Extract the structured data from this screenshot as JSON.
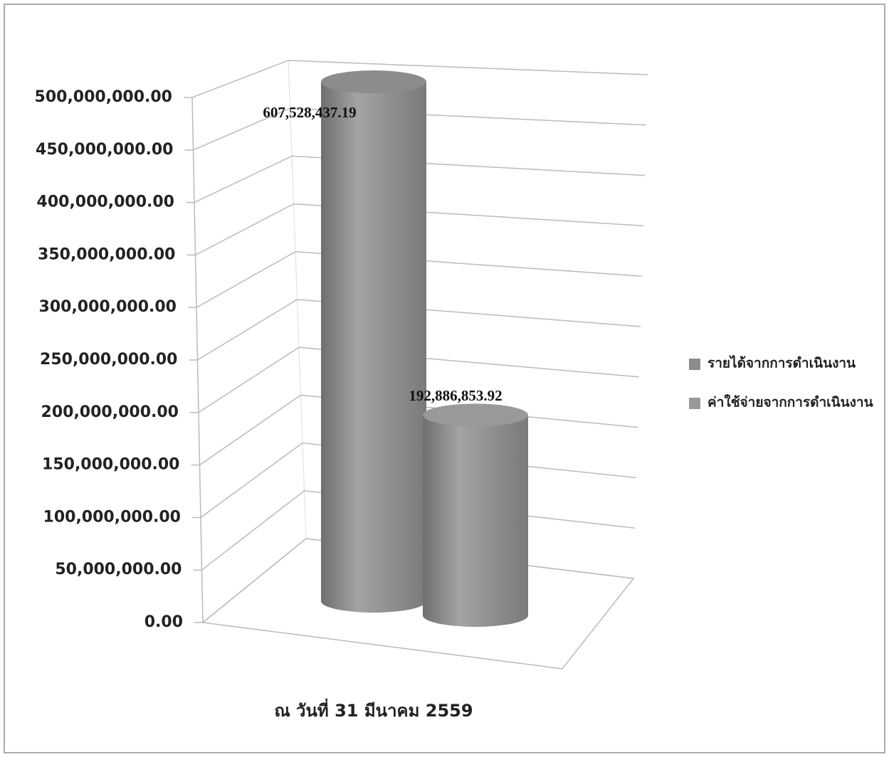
{
  "chart_data": {
    "type": "bar3d",
    "categories": [
      "ณ วันที่ 31 มีนาคม 2559"
    ],
    "series": [
      {
        "name": "รายได้จากการดำเนินงาน",
        "color": "#8c8c8c",
        "values": [
          607528437.19
        ],
        "value_labels": [
          "607,528,437.19"
        ]
      },
      {
        "name": "ค่าใช้จ่ายจากการดำเนินงาน",
        "color": "#999999",
        "values": [
          192886853.92
        ],
        "value_labels": [
          "192,886,853.92"
        ]
      }
    ],
    "ylim": [
      0,
      500000000
    ],
    "yticks": [
      {
        "value": 0,
        "label": "0.00"
      },
      {
        "value": 50000000,
        "label": "50,000,000.00"
      },
      {
        "value": 100000000,
        "label": "100,000,000.00"
      },
      {
        "value": 150000000,
        "label": "150,000,000.00"
      },
      {
        "value": 200000000,
        "label": "200,000,000.00"
      },
      {
        "value": 250000000,
        "label": "250,000,000.00"
      },
      {
        "value": 300000000,
        "label": "300,000,000.00"
      },
      {
        "value": 350000000,
        "label": "350,000,000.00"
      },
      {
        "value": 400000000,
        "label": "400,000,000.00"
      },
      {
        "value": 450000000,
        "label": "450,000,000.00"
      },
      {
        "value": 500000000,
        "label": "500,000,000.00"
      }
    ],
    "grid": true,
    "legend": "right"
  }
}
